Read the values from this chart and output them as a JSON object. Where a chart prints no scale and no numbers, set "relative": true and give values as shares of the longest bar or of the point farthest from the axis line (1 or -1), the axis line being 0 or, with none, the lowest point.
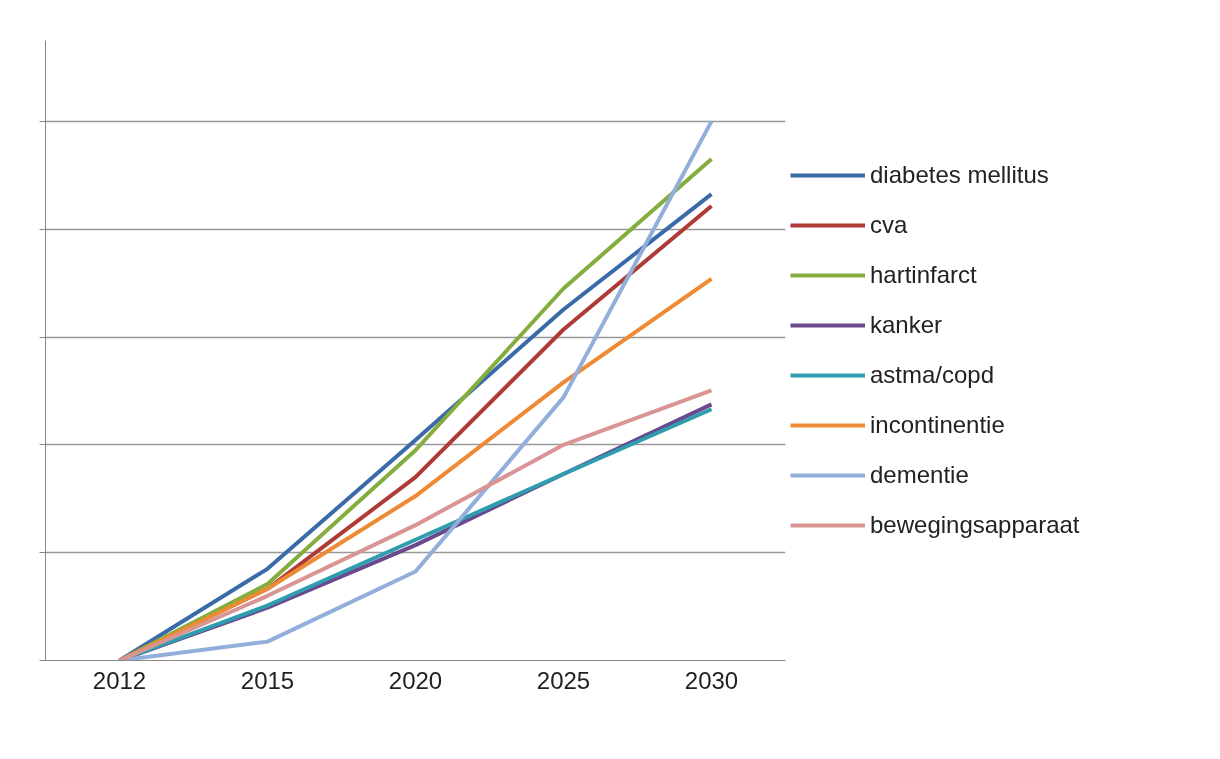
{
  "chart_data": {
    "type": "line",
    "relative": true,
    "categories": [
      "2012",
      "2015",
      "2020",
      "2025",
      "2030"
    ],
    "series": [
      {
        "name": "diabetes mellitus",
        "color": "#3a6aa8",
        "values": [
          0,
          0.17,
          0.409,
          0.651,
          0.865
        ]
      },
      {
        "name": "cva",
        "color": "#b03a36",
        "values": [
          0,
          0.133,
          0.34,
          0.614,
          0.843
        ]
      },
      {
        "name": "hartinfarct",
        "color": "#84ad3e",
        "values": [
          0,
          0.142,
          0.39,
          0.69,
          0.93
        ]
      },
      {
        "name": "kanker",
        "color": "#6a4a8c",
        "values": [
          0,
          0.098,
          0.214,
          0.346,
          0.475
        ]
      },
      {
        "name": "astma/copd",
        "color": "#2e9db0",
        "values": [
          0,
          0.102,
          0.224,
          0.346,
          0.466
        ]
      },
      {
        "name": "incontinentie",
        "color": "#ee8a34",
        "values": [
          0,
          0.133,
          0.305,
          0.516,
          0.708
        ]
      },
      {
        "name": "dementie",
        "color": "#92aedb",
        "values": [
          0,
          0.035,
          0.165,
          0.488,
          1
        ]
      },
      {
        "name": "bewegingsapparaat",
        "color": "#d99594",
        "values": [
          0,
          0.12,
          0.251,
          0.4,
          0.501
        ]
      }
    ],
    "grid": "y",
    "legend": "right",
    "tick_labels": "x",
    "marker": "none",
    "line_style": "solid"
  }
}
